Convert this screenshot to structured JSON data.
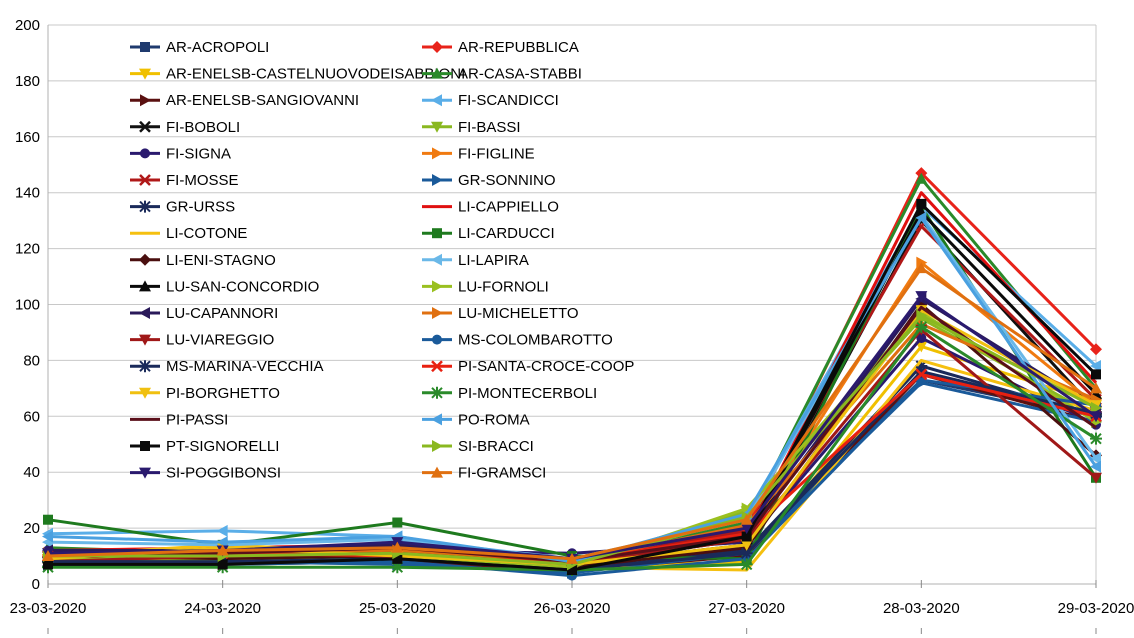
{
  "chart_data": {
    "type": "line",
    "title": "",
    "xlabel": "",
    "ylabel": "",
    "ylim": [
      0,
      200
    ],
    "yticks": [
      0,
      20,
      40,
      60,
      80,
      100,
      120,
      140,
      160,
      180,
      200
    ],
    "grid": true,
    "legend_position": "top-left",
    "categories": [
      "23-03-2020",
      "24-03-2020",
      "25-03-2020",
      "26-03-2020",
      "27-03-2020",
      "28-03-2020",
      "29-03-2020"
    ],
    "series": [
      {
        "name": "AR-ACROPOLI",
        "color": "#1f3a6e",
        "marker": "square",
        "values": [
          9,
          8,
          10,
          5,
          12,
          73,
          60
        ]
      },
      {
        "name": "AR-REPUBBLICA",
        "color": "#e8231a",
        "marker": "diamond",
        "values": [
          10,
          12,
          11,
          8,
          20,
          147,
          84
        ]
      },
      {
        "name": "AR-ENELSB-CASTELNUOVODEISABBIONI",
        "color": "#f0c000",
        "marker": "triangle-down",
        "values": [
          8,
          9,
          9,
          6,
          8,
          85,
          65
        ]
      },
      {
        "name": "AR-CASA-STABBI",
        "color": "#2a8a2a",
        "marker": "triangle-up",
        "values": [
          13,
          11,
          12,
          8,
          22,
          145,
          70
        ]
      },
      {
        "name": "AR-ENELSB-SANGIOVANNI",
        "color": "#5a1010",
        "marker": "triangle-right",
        "values": [
          7,
          7,
          8,
          5,
          10,
          75,
          58
        ]
      },
      {
        "name": "FI-SCANDICCI",
        "color": "#5aaee8",
        "marker": "triangle-left",
        "values": [
          18,
          19,
          17,
          7,
          24,
          135,
          78
        ]
      },
      {
        "name": "FI-BOBOLI",
        "color": "#111111",
        "marker": "x",
        "values": [
          10,
          10,
          11,
          7,
          14,
          130,
          62
        ]
      },
      {
        "name": "FI-BASSI",
        "color": "#8ab820",
        "marker": "triangle-down",
        "values": [
          9,
          11,
          9,
          7,
          26,
          95,
          60
        ]
      },
      {
        "name": "FI-SIGNA",
        "color": "#2a1a6e",
        "marker": "circle",
        "values": [
          12,
          11,
          12,
          11,
          15,
          88,
          57
        ]
      },
      {
        "name": "FI-FIGLINE",
        "color": "#f07a10",
        "marker": "triangle-right",
        "values": [
          11,
          13,
          10,
          9,
          18,
          115,
          64
        ]
      },
      {
        "name": "FI-MOSSE",
        "color": "#b01818",
        "marker": "x",
        "values": [
          9,
          12,
          13,
          8,
          19,
          128,
          66
        ]
      },
      {
        "name": "GR-SONNINO",
        "color": "#1a5a9a",
        "marker": "triangle-right",
        "values": [
          7,
          8,
          7,
          4,
          11,
          72,
          58
        ]
      },
      {
        "name": "GR-URSS",
        "color": "#1a2a5a",
        "marker": "star",
        "values": [
          8,
          8,
          9,
          5,
          12,
          78,
          60
        ]
      },
      {
        "name": "LI-CAPPIELLO",
        "color": "#e01010",
        "marker": "none",
        "values": [
          12,
          13,
          14,
          9,
          17,
          140,
          72
        ]
      },
      {
        "name": "LI-COTONE",
        "color": "#f5c010",
        "marker": "none",
        "values": [
          10,
          14,
          11,
          6,
          5,
          80,
          62
        ]
      },
      {
        "name": "LI-CARDUCCI",
        "color": "#1e7a1e",
        "marker": "square",
        "values": [
          23,
          14,
          22,
          10,
          9,
          135,
          38
        ]
      },
      {
        "name": "LI-ENI-STAGNO",
        "color": "#4a0f0f",
        "marker": "diamond",
        "values": [
          8,
          9,
          10,
          6,
          13,
          100,
          46
        ]
      },
      {
        "name": "LI-LAPIRA",
        "color": "#6ab8e8",
        "marker": "triangle-left",
        "values": [
          15,
          14,
          16,
          9,
          23,
          132,
          45
        ]
      },
      {
        "name": "LU-SAN-CONCORDIO",
        "color": "#0a0a0a",
        "marker": "triangle-up",
        "values": [
          11,
          10,
          12,
          7,
          16,
          133,
          68
        ]
      },
      {
        "name": "LU-FORNOLI",
        "color": "#9ac020",
        "marker": "triangle-right",
        "values": [
          9,
          8,
          9,
          6,
          27,
          97,
          58
        ]
      },
      {
        "name": "LU-CAPANNORI",
        "color": "#2a1a5a",
        "marker": "triangle-left",
        "values": [
          12,
          12,
          14,
          8,
          17,
          102,
          63
        ]
      },
      {
        "name": "LU-MICHELETTO",
        "color": "#e07010",
        "marker": "triangle-right",
        "values": [
          10,
          11,
          12,
          8,
          21,
          93,
          66
        ]
      },
      {
        "name": "LU-VIAREGGIO",
        "color": "#a01818",
        "marker": "triangle-down",
        "values": [
          8,
          10,
          11,
          7,
          16,
          91,
          38
        ]
      },
      {
        "name": "MS-COLOMBAROTTO",
        "color": "#1a5a9a",
        "marker": "circle",
        "values": [
          7,
          7,
          8,
          3,
          9,
          73,
          64
        ]
      },
      {
        "name": "MS-MARINA-VECCHIA",
        "color": "#1a2a5a",
        "marker": "star",
        "values": [
          8,
          8,
          9,
          5,
          11,
          76,
          61
        ]
      },
      {
        "name": "PI-SANTA-CROCE-COOP",
        "color": "#e82010",
        "marker": "x",
        "values": [
          10,
          11,
          10,
          8,
          18,
          75,
          60
        ]
      },
      {
        "name": "PI-BORGHETTO",
        "color": "#f0c010",
        "marker": "triangle-down",
        "values": [
          9,
          13,
          10,
          7,
          14,
          98,
          64
        ]
      },
      {
        "name": "PI-MONTECERBOLI",
        "color": "#2a8a2a",
        "marker": "star",
        "values": [
          6,
          6,
          6,
          5,
          7,
          92,
          52
        ]
      },
      {
        "name": "PI-PASSI",
        "color": "#5a0f1a",
        "marker": "none",
        "values": [
          11,
          11,
          13,
          8,
          17,
          99,
          56
        ]
      },
      {
        "name": "PO-ROMA",
        "color": "#4aa0e0",
        "marker": "triangle-left",
        "values": [
          17,
          15,
          17,
          8,
          25,
          131,
          42
        ]
      },
      {
        "name": "PT-SIGNORELLI",
        "color": "#0a0a0a",
        "marker": "square",
        "values": [
          7,
          7,
          9,
          5,
          17,
          136,
          75
        ]
      },
      {
        "name": "SI-BRACCI",
        "color": "#8ab820",
        "marker": "triangle-right",
        "values": [
          10,
          10,
          11,
          7,
          24,
          96,
          63
        ]
      },
      {
        "name": "SI-POGGIBONSI",
        "color": "#2a1a6e",
        "marker": "triangle-down",
        "values": [
          11,
          12,
          15,
          9,
          20,
          103,
          60
        ]
      },
      {
        "name": "FI-GRAMSCI",
        "color": "#e07010",
        "marker": "triangle-up",
        "values": [
          10,
          12,
          13,
          9,
          23,
          113,
          70
        ]
      }
    ]
  }
}
